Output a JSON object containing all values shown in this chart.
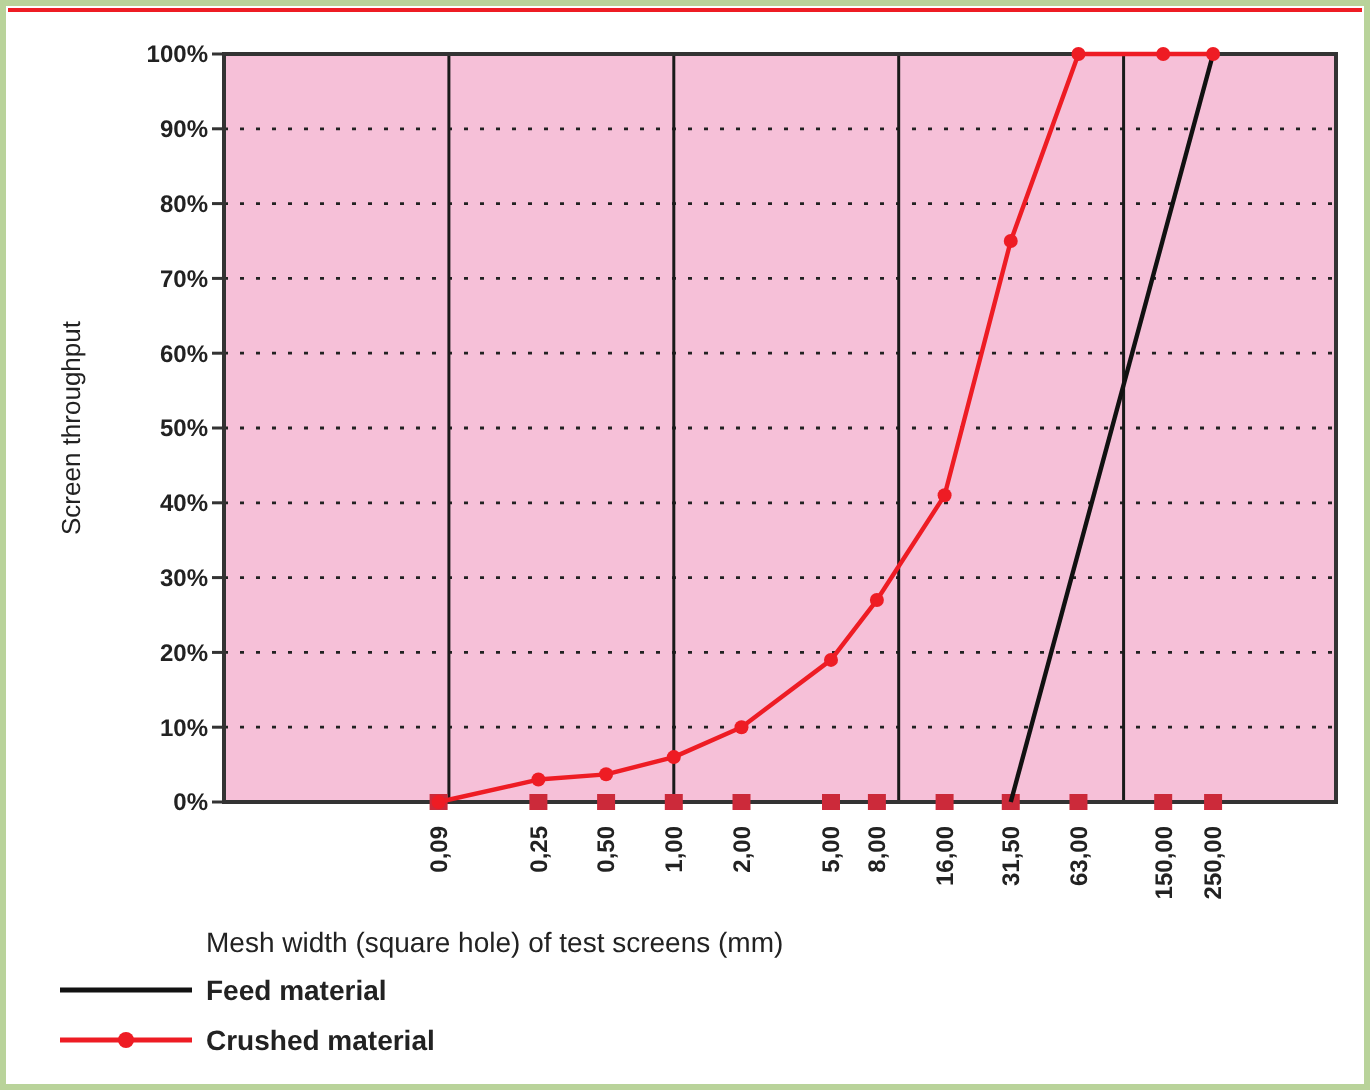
{
  "chart_data": {
    "type": "line",
    "xlabel": "Mesh width (square hole) of test screens (mm)",
    "ylabel": "Screen throughput",
    "log": "x",
    "xlim": [
      0.01,
      880
    ],
    "ylim": [
      0,
      100
    ],
    "xticks": [
      {
        "value": 0.09,
        "label": "0,09"
      },
      {
        "value": 0.25,
        "label": "0,25"
      },
      {
        "value": 0.5,
        "label": "0,50"
      },
      {
        "value": 1,
        "label": "1,00"
      },
      {
        "value": 2,
        "label": "2,00"
      },
      {
        "value": 5,
        "label": "5,00"
      },
      {
        "value": 8,
        "label": "8,00"
      },
      {
        "value": 16,
        "label": "16,00"
      },
      {
        "value": 31.5,
        "label": "31,50"
      },
      {
        "value": 63,
        "label": "63,00"
      },
      {
        "value": 150,
        "label": "150,00"
      },
      {
        "value": 250,
        "label": "250,00"
      }
    ],
    "yticks": [
      {
        "value": 0,
        "label": "0%"
      },
      {
        "value": 10,
        "label": "10%"
      },
      {
        "value": 20,
        "label": "20%"
      },
      {
        "value": 30,
        "label": "30%"
      },
      {
        "value": 40,
        "label": "40%"
      },
      {
        "value": 50,
        "label": "50%"
      },
      {
        "value": 60,
        "label": "60%"
      },
      {
        "value": 70,
        "label": "70%"
      },
      {
        "value": 80,
        "label": "80%"
      },
      {
        "value": 90,
        "label": "90%"
      },
      {
        "value": 100,
        "label": "100%"
      }
    ],
    "grid": "y",
    "legend": "bottom left",
    "ref_lines": [
      {
        "axis": "x",
        "value": 0.1,
        "color": "#1a1a1a"
      },
      {
        "axis": "x",
        "value": 1,
        "color": "#1a1a1a"
      },
      {
        "axis": "x",
        "value": 10,
        "color": "#1a1a1a"
      },
      {
        "axis": "x",
        "value": 100,
        "color": "#1a1a1a"
      }
    ],
    "series": [
      {
        "name": "Feed material",
        "color": "#111111",
        "x": [
          31.5,
          250
        ],
        "values": [
          0,
          100
        ]
      },
      {
        "name": "Crushed material",
        "color": "#ee1c24",
        "x": [
          0.09,
          0.25,
          0.5,
          1,
          2,
          5,
          8,
          16,
          31.5,
          63,
          150,
          250
        ],
        "values": [
          0,
          3,
          3.7,
          6,
          10,
          19,
          27,
          41,
          75,
          100,
          100,
          100
        ],
        "marker": "circle"
      }
    ]
  }
}
